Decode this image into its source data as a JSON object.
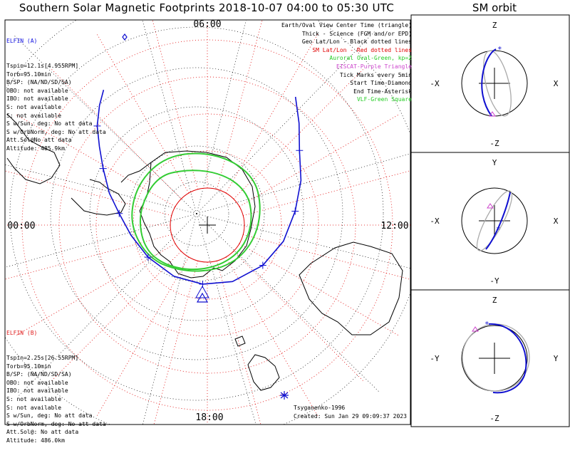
{
  "title": "Southern Solar Magnetic Footprints 2018-10-07 04:00 to 05:30 UTC",
  "orbit_title": "SM orbit",
  "polar": {
    "mlt_labels": {
      "top": "06:00",
      "left": "00:00",
      "right": "12:00",
      "bottom": "18:00"
    }
  },
  "legend": [
    {
      "text": "Earth/Oval View Center Time (triangle)",
      "color": "#000000"
    },
    {
      "text": "Thick - Science (FGM and/or EPD)",
      "color": "#000000"
    },
    {
      "text": "Geo Lat/Lon - Black dotted lines",
      "color": "#000000"
    },
    {
      "text": "SM Lat/Lon - Red dotted lines",
      "color": "#e00000"
    },
    {
      "text": "Auroral Oval-Green, kp=2",
      "color": "#22cc22"
    },
    {
      "text": "EISCAT-Purple Triangle",
      "color": "#cc44cc"
    },
    {
      "text": "Tick Marks every 5min",
      "color": "#000000"
    },
    {
      "text": "Start Time-Diamond",
      "color": "#000000"
    },
    {
      "text": "End Time-Asterisk",
      "color": "#000000"
    },
    {
      "text": "VLF-Green Square",
      "color": "#22cc22"
    }
  ],
  "elfin_a": {
    "header": "ELFIN (A)",
    "lines": [
      "Tspin=12.1s[4.955RPM]",
      "Torb=95.10min",
      "B/SP: (NA/ND/SD/SA)",
      "OBO: not available",
      "IBO: not available",
      "S: not available",
      "S: not available",
      "S w/Sun, deg: No att data",
      "S w/OrbNorm, deg: No att data",
      "Att.Sol@No att data",
      "Altitude: 485.9km"
    ]
  },
  "elfin_b": {
    "header": "ELFIN (B)",
    "lines": [
      "Tspin=2.25s[26.55RPM]",
      "Torb=95.10min",
      "B/SP: (NA/ND/SD/SA)",
      "OBO: not available",
      "IBO: not available",
      "S: not available",
      "S: not available",
      "S w/Sun, deg: No att data",
      "S w/OrbNorm, deg: No att data",
      "Att.Sol@: No att data",
      "Altitude: 486.0km"
    ]
  },
  "credits": {
    "author": "Tsyganenko-1996",
    "created": "Created: Sun Jan 29 09:09:37 2023"
  },
  "orbit_panels": [
    {
      "up": "Z",
      "down": "-Z",
      "left": "-X",
      "right": "X"
    },
    {
      "up": "Y",
      "down": "-Y",
      "left": "-X",
      "right": "X"
    },
    {
      "up": "Z",
      "down": "-Z",
      "left": "-Y",
      "right": "Y"
    }
  ],
  "chart_data": {
    "type": "polar",
    "title": "Southern Solar Magnetic Footprints 2018-10-07 04:00 to 05:30 UTC",
    "sm_latitude_rings_deg": [
      -80,
      -70,
      -60,
      -50,
      -40
    ],
    "mlt_labels": [
      "00:00",
      "06:00",
      "12:00",
      "18:00"
    ],
    "auroral_oval": "kp=2",
    "track": {
      "name": "ELFIN (A)",
      "color": "#1010d0",
      "footprint_mlt_deg": [
        [
          -48,
          8.3
        ],
        [
          -53,
          8.8
        ],
        [
          -58,
          9.4
        ],
        [
          -62,
          10.3
        ],
        [
          -66,
          11.4
        ],
        [
          -69,
          12.8
        ],
        [
          -71.5,
          14.4
        ],
        [
          -73.3,
          16.4
        ],
        [
          -74,
          18.3
        ],
        [
          -73.5,
          20.2
        ],
        [
          -71.8,
          22.1
        ],
        [
          -69.2,
          23.5
        ],
        [
          -66,
          0.5
        ],
        [
          -62.2,
          1.2
        ],
        [
          -58,
          1.9
        ],
        [
          -54,
          2.4
        ],
        [
          -50,
          2.8
        ],
        [
          -46.5,
          3.2
        ],
        [
          -44,
          3.5
        ]
      ]
    }
  }
}
